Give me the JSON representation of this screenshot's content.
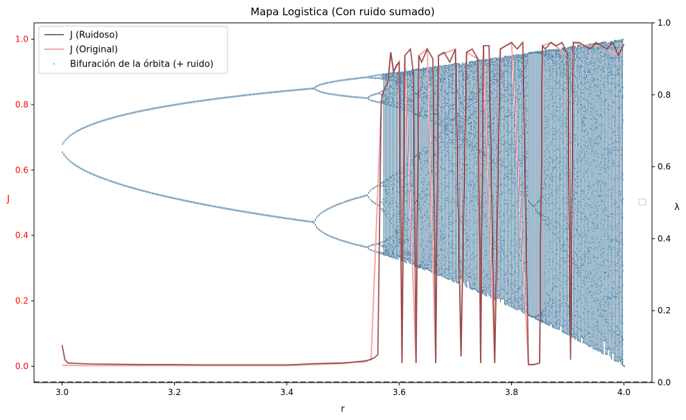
{
  "chart_data": {
    "type": "line",
    "title": "Mapa Logistica (Con ruido sumado)",
    "xlabel": "r",
    "ylabel_left": "J",
    "ylabel_right": "λ",
    "xlim": [
      2.95,
      4.05
    ],
    "ylim_left": [
      -0.05,
      1.05
    ],
    "ylim_right": [
      0.0,
      1.0
    ],
    "x_ticks": [
      {
        "value": 3.0,
        "label": "3.0"
      },
      {
        "value": 3.2,
        "label": "3.2"
      },
      {
        "value": 3.4,
        "label": "3.4"
      },
      {
        "value": 3.6,
        "label": "3.6"
      },
      {
        "value": 3.8,
        "label": "3.8"
      },
      {
        "value": 4.0,
        "label": "4.0"
      }
    ],
    "y_ticks_left": [
      {
        "value": 0.0,
        "label": "0.0"
      },
      {
        "value": 0.2,
        "label": "0.2"
      },
      {
        "value": 0.4,
        "label": "0.4"
      },
      {
        "value": 0.6,
        "label": "0.6"
      },
      {
        "value": 0.8,
        "label": "0.8"
      },
      {
        "value": 1.0,
        "label": "1.0"
      }
    ],
    "y_ticks_right": [
      {
        "value": 0.0,
        "label": "0.0"
      },
      {
        "value": 0.2,
        "label": "0.2"
      },
      {
        "value": 0.4,
        "label": "0.4"
      },
      {
        "value": 0.6,
        "label": "0.6"
      },
      {
        "value": 0.8,
        "label": "0.8"
      },
      {
        "value": 1.0,
        "label": "1.0"
      }
    ],
    "grid": false,
    "legend_position": "top-left",
    "series": [
      {
        "name": "J (Ruidoso)",
        "kind": "line",
        "color": "#555555",
        "x": [
          3.0,
          3.005,
          3.01,
          3.02,
          3.05,
          3.1,
          3.15,
          3.2,
          3.25,
          3.3,
          3.35,
          3.4,
          3.45,
          3.5,
          3.54,
          3.555,
          3.562,
          3.568,
          3.57,
          3.574,
          3.578,
          3.58,
          3.585,
          3.59,
          3.595,
          3.6,
          3.605,
          3.61,
          3.62,
          3.625,
          3.63,
          3.635,
          3.64,
          3.65,
          3.66,
          3.665,
          3.67,
          3.68,
          3.69,
          3.7,
          3.71,
          3.72,
          3.73,
          3.74,
          3.745,
          3.75,
          3.76,
          3.77,
          3.78,
          3.79,
          3.8,
          3.81,
          3.82,
          3.83,
          3.84,
          3.85,
          3.855,
          3.86,
          3.87,
          3.88,
          3.89,
          3.9,
          3.905,
          3.91,
          3.92,
          3.93,
          3.94,
          3.95,
          3.96,
          3.97,
          3.98,
          3.99,
          4.0
        ],
        "y": [
          0.065,
          0.02,
          0.01,
          0.009,
          0.007,
          0.006,
          0.005,
          0.005,
          0.004,
          0.004,
          0.004,
          0.004,
          0.008,
          0.01,
          0.015,
          0.025,
          0.035,
          0.8,
          0.83,
          0.85,
          0.86,
          0.87,
          0.96,
          0.9,
          0.92,
          0.93,
          0.01,
          0.95,
          0.97,
          0.9,
          0.01,
          0.95,
          0.93,
          0.97,
          0.94,
          0.01,
          0.95,
          0.96,
          0.93,
          0.97,
          0.03,
          0.96,
          0.97,
          0.94,
          0.01,
          0.98,
          0.98,
          0.01,
          0.97,
          0.98,
          0.99,
          0.97,
          0.99,
          0.005,
          0.005,
          0.01,
          0.98,
          0.97,
          0.99,
          0.98,
          0.99,
          0.95,
          0.02,
          0.99,
          0.99,
          0.98,
          0.97,
          0.99,
          0.98,
          0.97,
          0.99,
          0.95,
          0.985
        ]
      },
      {
        "name": "J (Original)",
        "kind": "line",
        "color": "#f4a6a6",
        "x": [
          3.0,
          3.05,
          3.1,
          3.2,
          3.3,
          3.4,
          3.45,
          3.5,
          3.55,
          3.568,
          3.57,
          3.574,
          3.578,
          3.58,
          3.585,
          3.59,
          3.6,
          3.605,
          3.61,
          3.63,
          3.635,
          3.65,
          3.665,
          3.67,
          3.7,
          3.71,
          3.72,
          3.74,
          3.745,
          3.75,
          3.77,
          3.78,
          3.8,
          3.83,
          3.84,
          3.85,
          3.855,
          3.87,
          3.9,
          3.905,
          3.91,
          3.93,
          3.96,
          3.99,
          4.0
        ],
        "y": [
          0.003,
          0.002,
          0.002,
          0.002,
          0.002,
          0.002,
          0.005,
          0.008,
          0.02,
          0.8,
          0.83,
          0.85,
          0.86,
          0.87,
          0.96,
          0.9,
          0.93,
          0.01,
          0.95,
          0.01,
          0.95,
          0.97,
          0.01,
          0.95,
          0.97,
          0.03,
          0.96,
          0.94,
          0.01,
          0.98,
          0.01,
          0.97,
          0.99,
          0.005,
          0.005,
          0.01,
          0.98,
          0.99,
          0.95,
          0.07,
          0.99,
          0.98,
          0.98,
          0.95,
          0.985
        ]
      },
      {
        "name": "Bifuración de la órbita (+ ruido)",
        "kind": "scatter",
        "color": "#1f5f8b",
        "description_params": {
          "r_min": 3.0,
          "r_max": 4.0
        }
      }
    ],
    "reference_line": {
      "axis": "right",
      "value": 0.0,
      "style": "dashed",
      "color": "#555555"
    },
    "empty_legend_marker": {
      "axis": "right",
      "position": "center-right"
    }
  },
  "colors": {
    "left_axis_ticks": "#ff0000",
    "left_axis_label": "#ff0000",
    "bifurcation_points": "#1f5f8b"
  }
}
